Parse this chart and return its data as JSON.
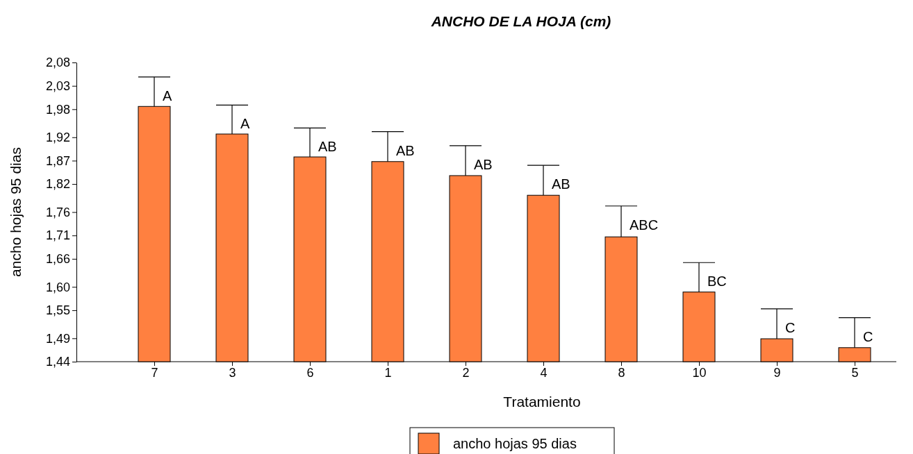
{
  "chart_data": {
    "type": "bar",
    "title": "ANCHO DE LA HOJA (cm)",
    "xlabel": "Tratamiento",
    "ylabel": "ancho hojas 95 dias",
    "categories": [
      "7",
      "3",
      "6",
      "1",
      "2",
      "4",
      "8",
      "10",
      "9",
      "5"
    ],
    "series": [
      {
        "name": "ancho hojas 95 dias",
        "color": "#ff8040",
        "values": [
          1.986,
          1.927,
          1.878,
          1.868,
          1.838,
          1.796,
          1.707,
          1.589,
          1.489,
          1.47
        ],
        "errors": [
          [
            1.986,
            2.049
          ],
          [
            1.927,
            1.989
          ],
          [
            1.878,
            1.94
          ],
          [
            1.868,
            1.932
          ],
          [
            1.838,
            1.902
          ],
          [
            1.796,
            1.86
          ],
          [
            1.707,
            1.773
          ],
          [
            1.589,
            1.652
          ],
          [
            1.489,
            1.553
          ],
          [
            1.47,
            1.534
          ]
        ]
      }
    ],
    "ylim": [
      1.44,
      2.08
    ],
    "yticks": [
      {
        "value": 1.44,
        "label": "1,44"
      },
      {
        "value": 1.49,
        "label": "1,49"
      },
      {
        "value": 1.55,
        "label": "1,55"
      },
      {
        "value": 1.6,
        "label": "1,60"
      },
      {
        "value": 1.66,
        "label": "1,66"
      },
      {
        "value": 1.71,
        "label": "1,71"
      },
      {
        "value": 1.76,
        "label": "1,76"
      },
      {
        "value": 1.82,
        "label": "1,82"
      },
      {
        "value": 1.87,
        "label": "1,87"
      },
      {
        "value": 1.92,
        "label": "1,92"
      },
      {
        "value": 1.98,
        "label": "1,98"
      },
      {
        "value": 2.03,
        "label": "2,03"
      },
      {
        "value": 2.08,
        "label": "2,08"
      }
    ],
    "annotations": [
      "A",
      "A",
      "AB",
      "AB",
      "AB",
      "AB",
      "ABC",
      "BC",
      "C",
      "C"
    ],
    "grid": false,
    "legend": "bottom"
  }
}
